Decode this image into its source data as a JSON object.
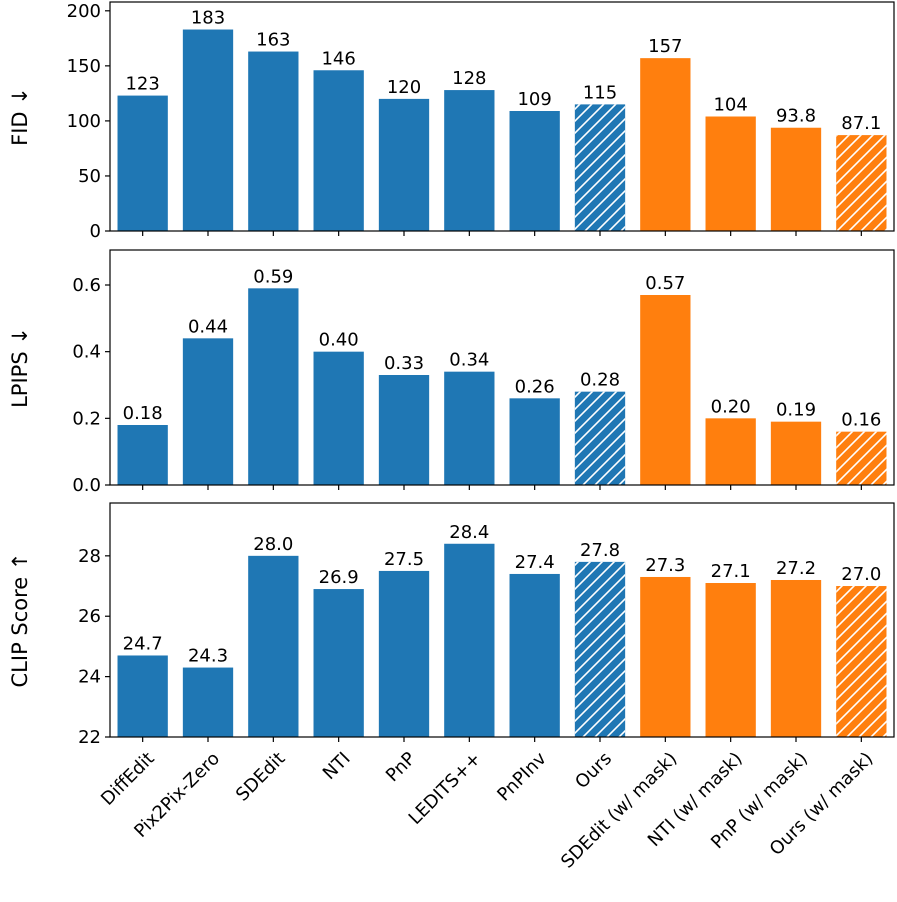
{
  "chart_data": {
    "type": "bar",
    "categories": [
      "DiffEdit",
      "Pix2Pix-Zero",
      "SDEdit",
      "NTI",
      "PnP",
      "LEDITS++",
      "PnPInv",
      "Ours",
      "SDEdit (w/ mask)",
      "NTI (w/ mask)",
      "PnP (w/ mask)",
      "Ours (w/ mask)"
    ],
    "bar_colors": [
      "#1f77b4",
      "#1f77b4",
      "#1f77b4",
      "#1f77b4",
      "#1f77b4",
      "#1f77b4",
      "#1f77b4",
      "#1f77b4",
      "#ff7f0e",
      "#ff7f0e",
      "#ff7f0e",
      "#ff7f0e"
    ],
    "hatched": [
      false,
      false,
      false,
      false,
      false,
      false,
      false,
      true,
      false,
      false,
      false,
      true
    ],
    "hatch_pattern": "diagonal",
    "hatch_color": "#ffffff",
    "grid": false,
    "legend": "none",
    "panels": [
      {
        "ylabel": "FID ↓",
        "ylim": [
          0,
          208
        ],
        "yticks": [
          0,
          50,
          100,
          150,
          200
        ],
        "yticklabels": [
          "0",
          "50",
          "100",
          "150",
          "200"
        ],
        "values": [
          123,
          183,
          163,
          146,
          120,
          128,
          109,
          115,
          157,
          104,
          93.8,
          87.1
        ],
        "labels": [
          "123",
          "183",
          "163",
          "146",
          "120",
          "128",
          "109",
          "115",
          "157",
          "104",
          "93.8",
          "87.1"
        ]
      },
      {
        "ylabel": "LPIPS ↓",
        "ylim": [
          0,
          0.705
        ],
        "yticks": [
          0.0,
          0.2,
          0.4,
          0.6
        ],
        "yticklabels": [
          "0.0",
          "0.2",
          "0.4",
          "0.6"
        ],
        "values": [
          0.18,
          0.44,
          0.59,
          0.4,
          0.33,
          0.34,
          0.26,
          0.28,
          0.57,
          0.2,
          0.19,
          0.16
        ],
        "labels": [
          "0.18",
          "0.44",
          "0.59",
          "0.40",
          "0.33",
          "0.34",
          "0.26",
          "0.28",
          "0.57",
          "0.20",
          "0.19",
          "0.16"
        ]
      },
      {
        "ylabel": "CLIP Score ↑",
        "ylim": [
          22,
          29.75
        ],
        "yticks": [
          22,
          24,
          26,
          28
        ],
        "yticklabels": [
          "22",
          "24",
          "26",
          "28"
        ],
        "values": [
          24.7,
          24.3,
          28.0,
          26.9,
          27.5,
          28.4,
          27.4,
          27.8,
          27.3,
          27.1,
          27.2,
          27.0
        ],
        "labels": [
          "24.7",
          "24.3",
          "28.0",
          "26.9",
          "27.5",
          "28.4",
          "27.4",
          "27.8",
          "27.3",
          "27.1",
          "27.2",
          "27.0"
        ]
      }
    ]
  }
}
